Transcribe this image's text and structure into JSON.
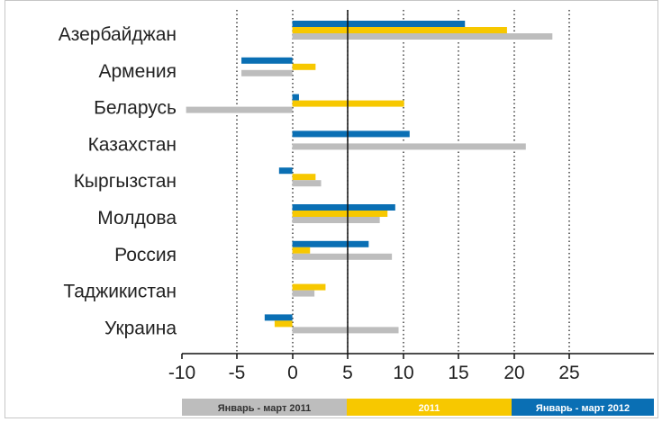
{
  "chart_data": {
    "type": "bar",
    "orientation": "horizontal",
    "categories": [
      "Азербайджан",
      "Армения",
      "Беларусь",
      "Казахстан",
      "Кыргызстан",
      "Молдова",
      "Россия",
      "Таджикистан",
      "Украина"
    ],
    "series": [
      {
        "name": "Январь - март 2012",
        "color": "#0a6fb4",
        "values": [
          15.6,
          -4.6,
          0.6,
          10.6,
          -1.2,
          9.3,
          6.9,
          null,
          -2.5
        ]
      },
      {
        "name": "2011",
        "color": "#f7c800",
        "values": [
          19.4,
          2.1,
          10.1,
          null,
          2.1,
          8.6,
          1.6,
          3.0,
          -1.6
        ]
      },
      {
        "name": "Январь - март 2011",
        "color": "#bdbdbd",
        "values": [
          23.5,
          -4.6,
          -9.6,
          21.1,
          2.6,
          7.9,
          9.0,
          2.0,
          9.6
        ]
      }
    ],
    "x_ticks": [
      "-10",
      "-5",
      "0",
      "5",
      "10",
      "15",
      "20",
      "25"
    ],
    "x_tick_values": [
      -10,
      -5,
      0,
      5,
      10,
      15,
      20,
      25
    ],
    "xlim": [
      -10,
      25
    ],
    "grid": "vertical dotted",
    "legend_position": "bottom",
    "legend": [
      {
        "label": "Январь - март 2011",
        "color": "#bdbdbd",
        "text_color": "#333333"
      },
      {
        "label": "2011",
        "color": "#f7c800",
        "text_color": "#ffffff"
      },
      {
        "label": "Январь - март 2012",
        "color": "#0a6fb4",
        "text_color": "#ffffff"
      }
    ]
  }
}
